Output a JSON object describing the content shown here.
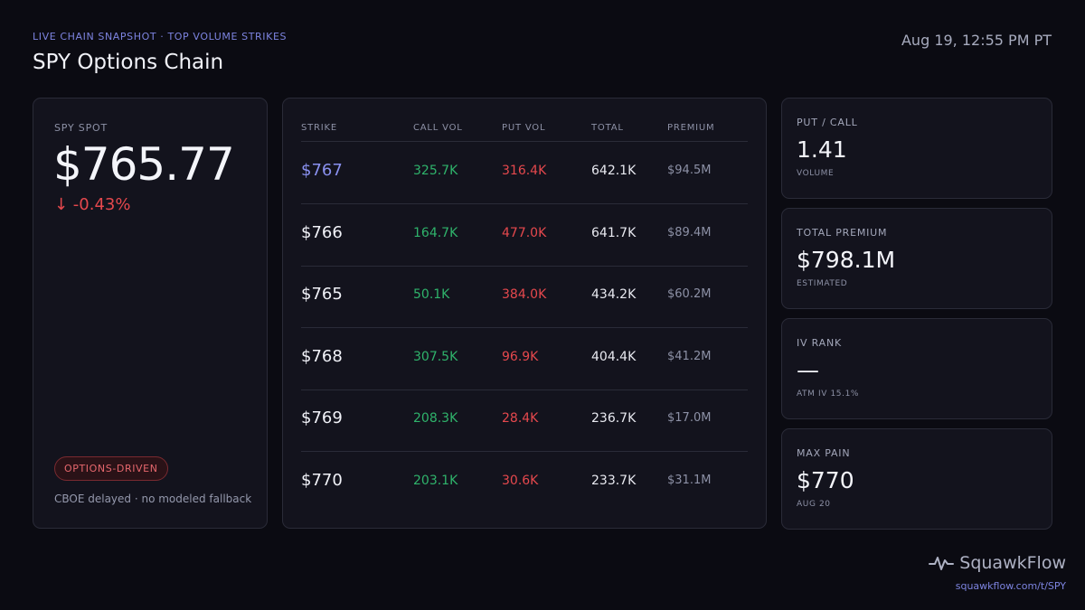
{
  "header": {
    "subtitle": "LIVE CHAIN SNAPSHOT · TOP VOLUME STRIKES",
    "title": "SPY Options Chain",
    "timestamp": "Aug 19, 12:55 PM PT"
  },
  "spot": {
    "label": "SPY SPOT",
    "price": "$765.77",
    "change": "↓ -0.43%",
    "badge": "OPTIONS-DRIVEN",
    "footnote": "CBOE delayed · no modeled fallback"
  },
  "table": {
    "columns": [
      "STRIKE",
      "CALL VOL",
      "PUT VOL",
      "TOTAL",
      "PREMIUM"
    ],
    "rows": [
      {
        "strike": "$767",
        "call_vol": "325.7K",
        "put_vol": "316.4K",
        "total": "642.1K",
        "premium": "$94.5M",
        "highlight": true
      },
      {
        "strike": "$766",
        "call_vol": "164.7K",
        "put_vol": "477.0K",
        "total": "641.7K",
        "premium": "$89.4M",
        "highlight": false
      },
      {
        "strike": "$765",
        "call_vol": "50.1K",
        "put_vol": "384.0K",
        "total": "434.2K",
        "premium": "$60.2M",
        "highlight": false
      },
      {
        "strike": "$768",
        "call_vol": "307.5K",
        "put_vol": "96.9K",
        "total": "404.4K",
        "premium": "$41.2M",
        "highlight": false
      },
      {
        "strike": "$769",
        "call_vol": "208.3K",
        "put_vol": "28.4K",
        "total": "236.7K",
        "premium": "$17.0M",
        "highlight": false
      },
      {
        "strike": "$770",
        "call_vol": "203.1K",
        "put_vol": "30.6K",
        "total": "233.7K",
        "premium": "$31.1M",
        "highlight": false
      }
    ]
  },
  "stats": [
    {
      "label": "PUT / CALL",
      "value": "1.41",
      "sub": "VOLUME"
    },
    {
      "label": "TOTAL PREMIUM",
      "value": "$798.1M",
      "sub": "ESTIMATED"
    },
    {
      "label": "IV RANK",
      "value": "—",
      "sub": "ATM IV 15.1%"
    },
    {
      "label": "MAX PAIN",
      "value": "$770",
      "sub": "AUG 20"
    }
  ],
  "brand": {
    "name": "SquawkFlow",
    "url": "squawkflow.com/t/SPY",
    "icon": "pulse-icon"
  },
  "colors": {
    "accent": "#7d84e0",
    "up": "#2fb36b",
    "down": "#e5484d",
    "background": "#0b0b12"
  }
}
